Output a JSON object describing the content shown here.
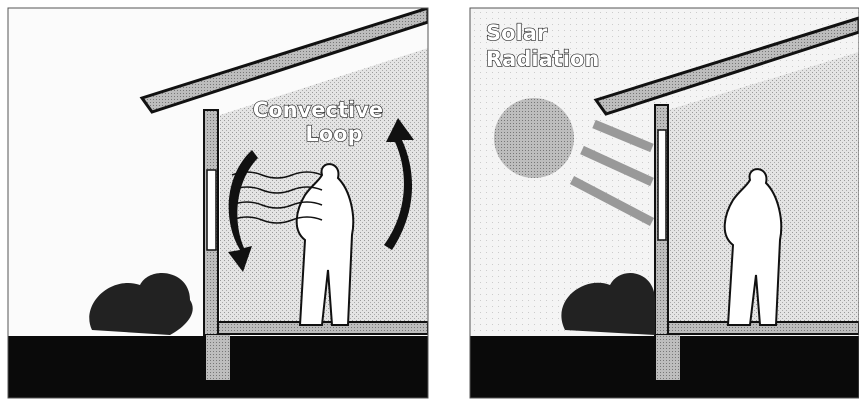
{
  "panels": [
    {
      "label": [
        "Convective",
        "Loop"
      ]
    },
    {
      "label": [
        "Solar",
        "Radiation"
      ]
    }
  ]
}
